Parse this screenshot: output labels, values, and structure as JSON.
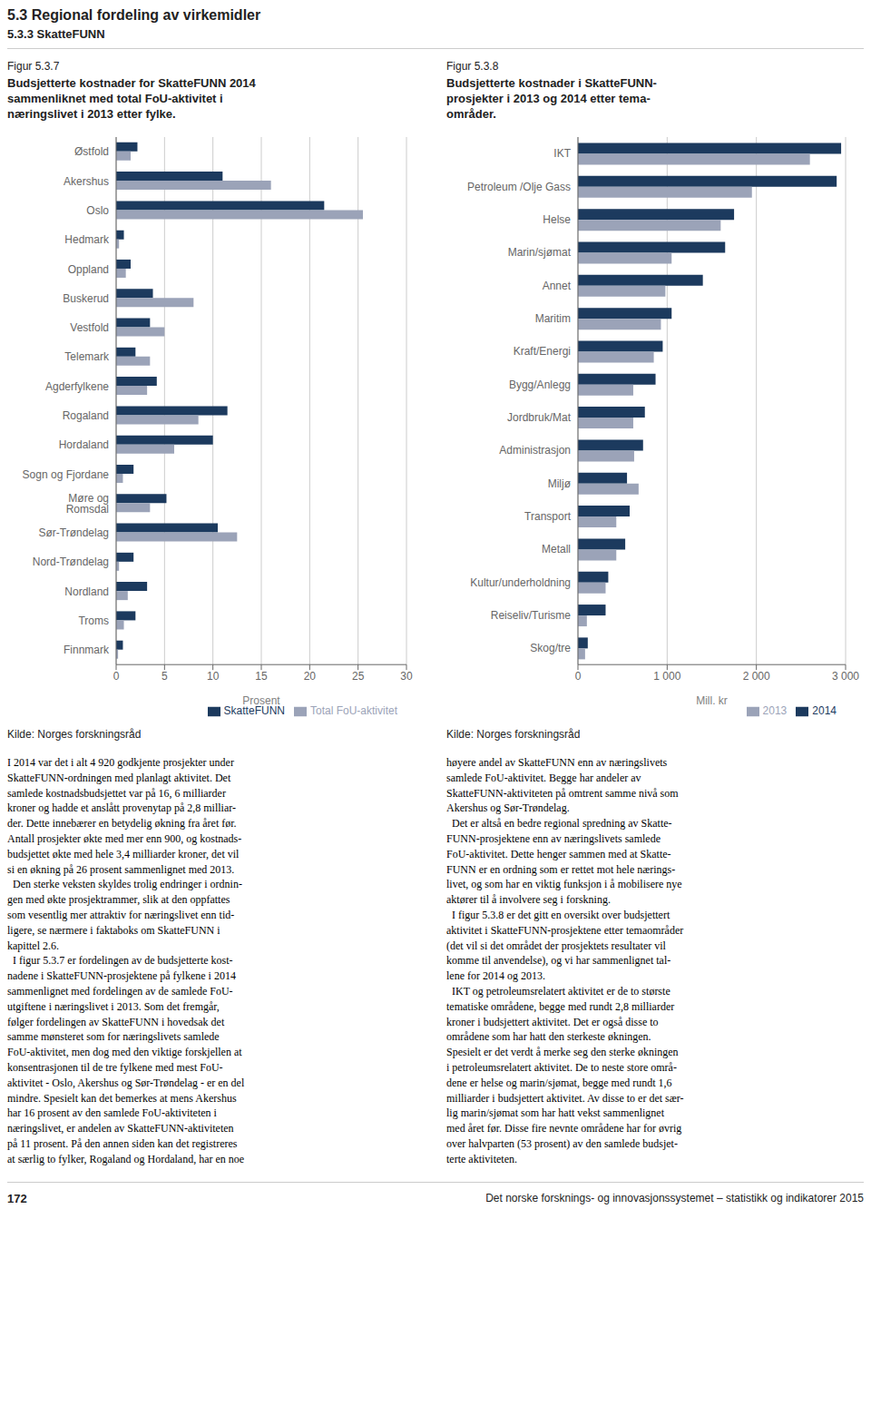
{
  "title": "5.3 Regional fordeling av virkemidler",
  "subtitle": "5.3.3 SkatteFUNN",
  "chart_data": [
    {
      "type": "bar",
      "orientation": "horizontal",
      "subtitle": "Figur 5.3.7",
      "title": "Budsjetterte kostnader for SkatteFUNN 2014\nsammenliknet med total FoU-aktivitet i\nnæringslivet i 2013 etter fylke.",
      "categories": [
        "Østfold",
        "Akershus",
        "Oslo",
        "Hedmark",
        "Oppland",
        "Buskerud",
        "Vestfold",
        "Telemark",
        "Agderfylkene",
        "Rogaland",
        "Hordaland",
        "Sogn og Fjordane",
        "Møre og Romsdal",
        "Sør-Trøndelag",
        "Nord-Trøndelag",
        "Nordland",
        "Troms",
        "Finnmark"
      ],
      "series": [
        {
          "name": "SkatteFUNN",
          "color": "#1c3a5e",
          "values": [
            2.2,
            11.0,
            21.5,
            0.8,
            1.5,
            3.8,
            3.5,
            2.0,
            4.2,
            11.5,
            10.0,
            1.8,
            5.2,
            10.5,
            1.8,
            3.2,
            2.0,
            0.7
          ]
        },
        {
          "name": "Total FoU-aktivitet",
          "color": "#9ba3b8",
          "values": [
            1.5,
            16.0,
            25.5,
            0.3,
            1.0,
            8.0,
            5.0,
            3.5,
            3.2,
            8.5,
            6.0,
            0.7,
            3.5,
            12.5,
            0.3,
            1.2,
            0.8,
            0.2
          ]
        }
      ],
      "xlabel": "Prosent",
      "xlim": [
        0,
        30
      ],
      "xticks": [
        0,
        5,
        10,
        15,
        20,
        25,
        30
      ],
      "grid": true,
      "legend": "lower right",
      "annotations": [
        "Kilde: Norges forskningsråd"
      ]
    },
    {
      "type": "bar",
      "orientation": "horizontal",
      "subtitle": "Figur 5.3.8",
      "title": "Budsjetterte kostnader i SkatteFUNN-\nprosjekter i 2013 og 2014 etter tema-\nområder.",
      "categories": [
        "IKT",
        "Petroleum /Olje Gass",
        "Helse",
        "Marin/sjømat",
        "Annet",
        "Maritim",
        "Kraft/Energi",
        "Bygg/Anlegg",
        "Jordbruk/Mat",
        "Administrasjon",
        "Miljø",
        "Transport",
        "Metall",
        "Kultur/underholdning",
        "Reiseliv/Turisme",
        "Skog/tre"
      ],
      "series": [
        {
          "name": "2014",
          "color": "#1c3a5e",
          "values": [
            2950,
            2900,
            1750,
            1650,
            1400,
            1050,
            950,
            870,
            750,
            730,
            550,
            580,
            530,
            340,
            310,
            110
          ]
        },
        {
          "name": "2013",
          "color": "#9ba3b8",
          "values": [
            2600,
            1950,
            1600,
            1050,
            980,
            930,
            850,
            620,
            620,
            630,
            680,
            430,
            430,
            310,
            100,
            80
          ]
        }
      ],
      "xlabel": "Mill. kr",
      "xlim": [
        0,
        3000
      ],
      "xticks": [
        0,
        {
          "value": 1000,
          "label": "1 000"
        },
        {
          "value": 2000,
          "label": "2 000"
        },
        {
          "value": 3000,
          "label": "3 000"
        }
      ],
      "grid": true,
      "legend": "lower right",
      "annotations": [
        "Kilde: Norges forskningsråd"
      ]
    }
  ],
  "annotations": [
    "I 2014 var det i alt 4 920 godkjente prosjekter under\nSkatteFUNN-ordningen med planlagt aktivitet. Det\nsamlede kostnadsbudsjettet var på 16, 6 milliarder\nkroner og hadde et anslått provenytap på 2,8 milliar-\nder. Dette innebærer en betydelig økning fra året før.\nAntall prosjekter økte med mer enn 900, og kostnads-\nbudsjettet økte med hele 3,4 milliarder kroner, det vil\nsi en økning på 26 prosent sammenlignet med 2013.\n  Den sterke veksten skyldes trolig endringer i ordnin-\ngen med økte prosjektrammer, slik at den oppfattes\nsom vesentlig mer attraktiv for næringslivet enn tid-\nligere, se nærmere i faktaboks om SkatteFUNN i\nkapittel 2.6.\n  I figur 5.3.7 er fordelingen av de budsjetterte kost-\nnadene i SkatteFUNN-prosjektene på fylkene i 2014\nsammenlignet med fordelingen av de samlede FoU-\nutgiftene i næringslivet i 2013. Som det fremgår,\nfølger fordelingen av SkatteFUNN i hovedsak det\nsamme mønsteret som for næringslivets samlede\nFoU-aktivitet, men dog med den viktige forskjellen at\nkonsentrasjonen til de tre fylkene med mest FoU-\naktivitet - Oslo, Akershus og Sør-Trøndelag - er en del\nmindre. Spesielt kan det bemerkes at mens Akershus\nhar 16 prosent av den samlede FoU-aktiviteten i\nnæringslivet, er andelen av SkatteFUNN-aktiviteten\npå 11 prosent. På den annen siden kan det registreres\nat særlig to fylker, Rogaland og Hordaland, har en noe",
    "høyere andel av SkatteFUNN enn av næringslivets\nsamlede FoU-aktivitet. Begge har andeler av\nSkatteFUNN-aktiviteten på omtrent samme nivå som\nAkershus og Sør-Trøndelag.\n  Det er altså en bedre regional spredning av Skatte-\nFUNN-prosjektene enn av næringslivets samlede\nFoU-aktivitet. Dette henger sammen med at Skatte-\nFUNN er en ordning som er rettet mot hele nærings-\nlivet, og som har en viktig funksjon i å mobilisere nye\naktører til å involvere seg i forskning.\n  I figur 5.3.8 er det gitt en oversikt over budsjettert\naktivitet i SkatteFUNN-prosjektene etter temaområder\n(det vil si det området der prosjektets resultater vil\nkomme til anvendelse), og vi har sammenlignet tal-\nlene for 2014 og 2013.\n  IKT og petroleumsrelatert aktivitet er de to største\ntematiske områdene, begge med rundt 2,8 milliarder\nkroner i budsjettert aktivitet. Det er også disse to\nområdene som har hatt den sterkeste økningen.\nSpesielt er det verdt å merke seg den sterke økningen\ni petroleumsrelatert aktivitet. De to neste store områ-\ndene er helse og marin/sjømat, begge med rundt 1,6\nmilliarder i budsjettert aktivitet. Av disse to er det sær-\nlig marin/sjømat som har hatt vekst sammenlignet\nmed året før. Disse fire nevnte områdene har for øvrig\nover halvparten (53 prosent) av den samlede budsjet-\nterte aktiviteten.",
    "172",
    "Det norske forsknings- og innovasjonssystemet – statistikk og indikatorer 2015"
  ]
}
